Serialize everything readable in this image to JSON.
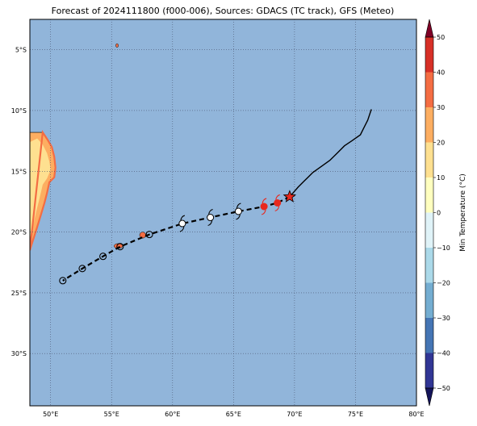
{
  "title": "Forecast of 2024111800 (f000-006), Sources: GDACS (TC track), GFS (Meteo)",
  "chart_data": {
    "type": "map",
    "projection": "plate-carree",
    "lon_range": [
      48.3,
      80
    ],
    "lat_range": [
      -34.3,
      -2.5
    ],
    "lon_ticks": [
      50,
      55,
      60,
      65,
      70,
      75,
      80
    ],
    "lon_tick_labels": [
      "50°E",
      "55°E",
      "60°E",
      "65°E",
      "70°E",
      "75°E",
      "80°E"
    ],
    "lat_ticks": [
      -5,
      -10,
      -15,
      -20,
      -25,
      -30
    ],
    "lat_tick_labels": [
      "5°S",
      "10°S",
      "15°S",
      "20°S",
      "25°S",
      "30°S"
    ],
    "grid": true,
    "ocean_color": "#91b5da",
    "colorbar": {
      "label": "Min Temperature (°C)",
      "ticks": [
        -50,
        -40,
        -30,
        -20,
        -10,
        0,
        10,
        20,
        30,
        40,
        50
      ],
      "tick_labels": [
        "−50",
        "−40",
        "−30",
        "−20",
        "−10",
        "0",
        "10",
        "20",
        "30",
        "40",
        "50"
      ],
      "levels": [
        -50,
        -40,
        -30,
        -20,
        -10,
        0,
        10,
        20,
        30,
        40,
        50
      ],
      "colors": [
        "#313695",
        "#4575b4",
        "#74add1",
        "#abd9e9",
        "#e0f3f8",
        "#ffffbf",
        "#fee090",
        "#fdae61",
        "#f46d43",
        "#d73027",
        "#a50026"
      ],
      "extend": "both"
    },
    "past_track": [
      [
        76.3,
        -9.9
      ],
      [
        76.0,
        -10.8
      ],
      [
        75.7,
        -11.4
      ],
      [
        75.4,
        -12.0
      ],
      [
        74.7,
        -12.5
      ],
      [
        74.1,
        -12.9
      ],
      [
        73.5,
        -13.5
      ],
      [
        72.9,
        -14.1
      ],
      [
        72.2,
        -14.6
      ],
      [
        71.5,
        -15.1
      ],
      [
        70.8,
        -15.8
      ],
      [
        70.3,
        -16.3
      ],
      [
        69.6,
        -17.1
      ]
    ],
    "forecast_track": [
      [
        69.6,
        -17.1
      ],
      [
        68.6,
        -17.6
      ],
      [
        67.5,
        -17.9
      ],
      [
        65.4,
        -18.3
      ],
      [
        63.1,
        -18.8
      ],
      [
        60.8,
        -19.3
      ],
      [
        58.1,
        -20.2
      ],
      [
        55.7,
        -21.2
      ],
      [
        54.3,
        -22.0
      ],
      [
        52.6,
        -23.0
      ],
      [
        51.0,
        -24.0
      ]
    ],
    "current_position": [
      69.6,
      -17.1
    ],
    "cyclone_symbols": [
      {
        "lon": 68.6,
        "lat": -17.6,
        "color": "#e8281e"
      },
      {
        "lon": 67.5,
        "lat": -17.9,
        "color": "#e8281e"
      },
      {
        "lon": 65.4,
        "lat": -18.3,
        "color": "#000000"
      },
      {
        "lon": 63.1,
        "lat": -18.8,
        "color": "#000000"
      },
      {
        "lon": 60.8,
        "lat": -19.3,
        "color": "#000000"
      }
    ],
    "low_markers": [
      {
        "lon": 58.1,
        "lat": -20.2
      },
      {
        "lon": 55.7,
        "lat": -21.2
      },
      {
        "lon": 54.3,
        "lat": -22.0
      },
      {
        "lon": 52.6,
        "lat": -23.0
      },
      {
        "lon": 51.0,
        "lat": -24.0
      }
    ],
    "madagascar_outline": [
      [
        49.35,
        -11.8
      ],
      [
        49.75,
        -12.4
      ],
      [
        50.1,
        -13.0
      ],
      [
        50.3,
        -13.8
      ],
      [
        50.4,
        -14.7
      ],
      [
        50.3,
        -15.5
      ],
      [
        49.9,
        -15.9
      ],
      [
        49.7,
        -16.8
      ],
      [
        49.5,
        -17.6
      ],
      [
        49.2,
        -18.6
      ],
      [
        48.8,
        -19.9
      ],
      [
        48.45,
        -21.0
      ],
      [
        48.3,
        -21.5
      ],
      [
        48.3,
        -11.8
      ]
    ],
    "madagascar_warm_zone": [
      [
        48.9,
        -12.3
      ],
      [
        49.35,
        -12.8
      ],
      [
        49.7,
        -13.5
      ],
      [
        49.9,
        -14.2
      ],
      [
        50.0,
        -14.9
      ],
      [
        49.7,
        -15.6
      ],
      [
        49.35,
        -16.1
      ],
      [
        49.1,
        -17.2
      ],
      [
        48.8,
        -18.4
      ],
      [
        48.5,
        -19.8
      ],
      [
        48.3,
        -20.6
      ],
      [
        48.3,
        -12.6
      ]
    ],
    "small_islands": [
      {
        "lon": 55.55,
        "lat": -21.15,
        "rx": 0.35,
        "ry": 0.2
      },
      {
        "lon": 57.55,
        "lat": -20.25,
        "rx": 0.25,
        "ry": 0.25
      },
      {
        "lon": 55.45,
        "lat": -4.65,
        "rx": 0.1,
        "ry": 0.15
      }
    ]
  }
}
